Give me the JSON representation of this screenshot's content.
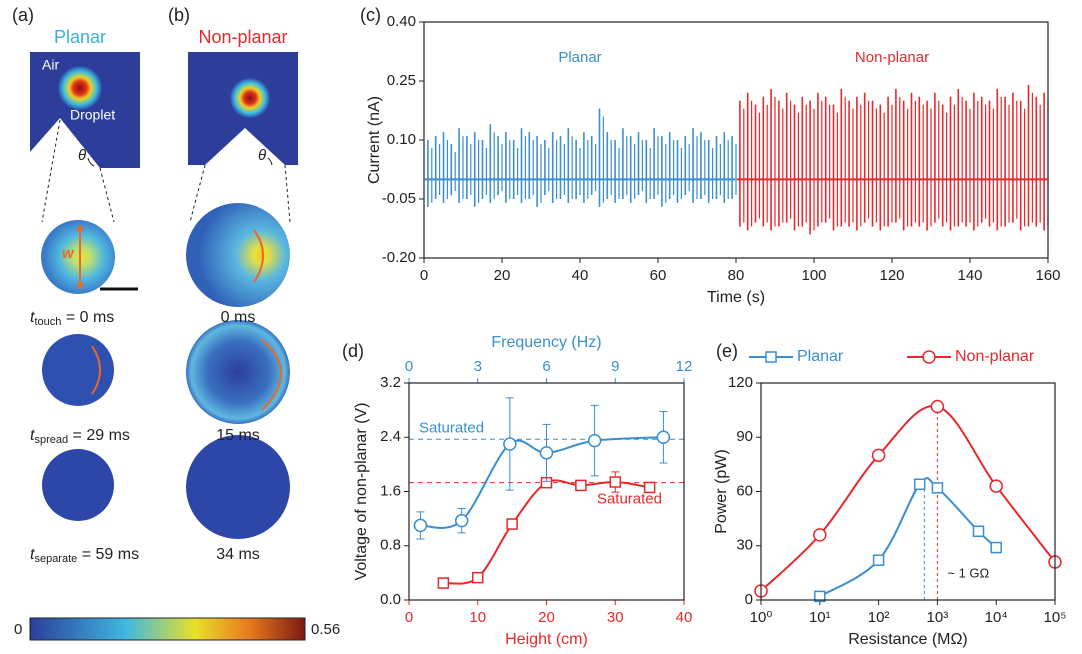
{
  "panel_a": {
    "label": "(a)",
    "title": "Planar",
    "air": "Air",
    "droplet": "Droplet",
    "angle": "θ",
    "width": "w",
    "captions": [
      {
        "t": "t",
        "sub": "touch",
        "rest": " = 0 ms"
      },
      {
        "t": "t",
        "sub": "spread",
        "rest": " = 29 ms"
      },
      {
        "t": "t",
        "sub": "separate",
        "rest": " = 59 ms"
      }
    ]
  },
  "panel_b": {
    "label": "(b)",
    "title": "Non-planar",
    "angle": "θ",
    "captions": [
      "0 ms",
      "15 ms",
      "34 ms"
    ]
  },
  "colorbar": {
    "min": 0,
    "max": 0.56
  },
  "chart_data": [
    {
      "type": "spike",
      "panel_label": "(c)",
      "xlabel": "Time (s)",
      "ylabel": "Current (nA)",
      "xlim": [
        0,
        160
      ],
      "xticks": [
        0,
        20,
        40,
        60,
        80,
        100,
        120,
        140,
        160
      ],
      "ylim": [
        -0.2,
        0.4
      ],
      "yticks": [
        {
          "value": -0.2,
          "label": "-0.20"
        },
        {
          "value": -0.05,
          "label": "-0.05"
        },
        {
          "value": 0.1,
          "label": "0.10"
        },
        {
          "value": 0.25,
          "label": "0.25"
        },
        {
          "value": 0.4,
          "label": "0.40"
        }
      ],
      "baseline": 0,
      "series": [
        {
          "name": "Planar",
          "color": "#3a8fd0",
          "x": [
            1,
            3,
            5,
            7,
            9,
            11,
            13,
            15,
            17,
            19,
            21,
            23,
            25,
            27,
            29,
            31,
            33,
            35,
            37,
            39,
            41,
            43,
            45,
            47,
            49,
            51,
            53,
            55,
            57,
            59,
            61,
            63,
            65,
            67,
            69,
            71,
            73,
            75,
            77,
            79
          ],
          "high": [
            0.1,
            0.11,
            0.12,
            0.09,
            0.13,
            0.11,
            0.12,
            0.1,
            0.14,
            0.11,
            0.12,
            0.1,
            0.13,
            0.12,
            0.11,
            0.1,
            0.12,
            0.11,
            0.13,
            0.1,
            0.12,
            0.11,
            0.18,
            0.12,
            0.1,
            0.13,
            0.11,
            0.12,
            0.1,
            0.13,
            0.11,
            0.12,
            0.1,
            0.11,
            0.13,
            0.12,
            0.1,
            0.11,
            0.12,
            0.11
          ],
          "low": [
            -0.07,
            -0.05,
            -0.06,
            -0.04,
            -0.06,
            -0.05,
            -0.07,
            -0.05,
            -0.06,
            -0.04,
            -0.06,
            -0.05,
            -0.06,
            -0.05,
            -0.07,
            -0.04,
            -0.06,
            -0.05,
            -0.06,
            -0.05,
            -0.06,
            -0.04,
            -0.07,
            -0.05,
            -0.06,
            -0.05,
            -0.06,
            -0.04,
            -0.06,
            -0.05,
            -0.07,
            -0.05,
            -0.06,
            -0.04,
            -0.06,
            -0.05,
            -0.06,
            -0.05,
            -0.06,
            -0.05
          ]
        },
        {
          "name": "Non-planar",
          "color": "#e8282b",
          "x": [
            81,
            83,
            85,
            87,
            89,
            91,
            93,
            95,
            97,
            99,
            101,
            103,
            105,
            107,
            109,
            111,
            113,
            115,
            117,
            119,
            121,
            123,
            125,
            127,
            129,
            131,
            133,
            135,
            137,
            139,
            141,
            143,
            145,
            147,
            149,
            151,
            153,
            155,
            157,
            159
          ],
          "high": [
            0.2,
            0.22,
            0.19,
            0.21,
            0.23,
            0.2,
            0.22,
            0.19,
            0.21,
            0.2,
            0.22,
            0.21,
            0.19,
            0.23,
            0.2,
            0.21,
            0.22,
            0.2,
            0.19,
            0.21,
            0.23,
            0.2,
            0.22,
            0.21,
            0.2,
            0.22,
            0.19,
            0.21,
            0.23,
            0.2,
            0.22,
            0.21,
            0.2,
            0.23,
            0.21,
            0.22,
            0.2,
            0.24,
            0.21,
            0.22
          ],
          "low": [
            -0.12,
            -0.13,
            -0.11,
            -0.12,
            -0.13,
            -0.12,
            -0.11,
            -0.13,
            -0.12,
            -0.14,
            -0.12,
            -0.11,
            -0.13,
            -0.12,
            -0.12,
            -0.13,
            -0.11,
            -0.12,
            -0.13,
            -0.12,
            -0.11,
            -0.13,
            -0.12,
            -0.12,
            -0.13,
            -0.11,
            -0.12,
            -0.13,
            -0.12,
            -0.12,
            -0.13,
            -0.11,
            -0.12,
            -0.13,
            -0.12,
            -0.11,
            -0.13,
            -0.12,
            -0.12,
            -0.13
          ]
        }
      ]
    },
    {
      "type": "line",
      "panel_label": "(d)",
      "xlabel": "Height (cm)",
      "x2label": "Frequency (Hz)",
      "ylabel": "Voltage of non-planar (V)",
      "xaxis_color": "#e8282b",
      "x2axis_color": "#3a8fd0",
      "xlim": [
        0,
        40
      ],
      "xticks": [
        0,
        10,
        20,
        30,
        40
      ],
      "x2lim": [
        0,
        12
      ],
      "x2ticks": [
        0,
        3,
        6,
        9,
        12
      ],
      "ylim": [
        0,
        3.2
      ],
      "yticks": [
        {
          "value": 0,
          "label": "0.0"
        },
        {
          "value": 0.8,
          "label": "0.8"
        },
        {
          "value": 1.6,
          "label": "1.6"
        },
        {
          "value": 2.4,
          "label": "2.4"
        },
        {
          "value": 3.2,
          "label": "3.2"
        }
      ],
      "series": [
        {
          "color": "#e8282b",
          "marker": "square",
          "x": [
            5,
            10,
            15,
            20,
            25,
            30,
            35
          ],
          "values": [
            0.25,
            0.33,
            1.12,
            1.73,
            1.69,
            1.74,
            1.66
          ],
          "errors": [
            0.03,
            0.03,
            0.05,
            0.05,
            0.04,
            0.15,
            0.07
          ]
        },
        {
          "color": "#3a8fd0",
          "marker": "circle",
          "axis": "x2",
          "x": [
            0.5,
            2.3,
            4.4,
            6,
            8.1,
            11.1
          ],
          "values": [
            1.1,
            1.17,
            2.3,
            2.17,
            2.35,
            2.4
          ],
          "errors": [
            0.2,
            0.18,
            0.68,
            0.42,
            0.52,
            0.38
          ]
        }
      ],
      "hlines": [
        {
          "value": 2.37,
          "color": "#3a8fd0",
          "label": "Saturated"
        },
        {
          "value": 1.73,
          "color": "#e8282b",
          "label": "Saturated"
        }
      ]
    },
    {
      "type": "line",
      "panel_label": "(e)",
      "xlabel": "Resistance (MΩ)",
      "ylabel": "Power (pW)",
      "xlog": true,
      "legend": "top",
      "xlim": [
        1,
        100000
      ],
      "xticks": [
        {
          "value": 1,
          "label": "10⁰"
        },
        {
          "value": 10,
          "label": "10¹"
        },
        {
          "value": 100,
          "label": "10²"
        },
        {
          "value": 1000,
          "label": "10³"
        },
        {
          "value": 10000,
          "label": "10⁴"
        },
        {
          "value": 100000,
          "label": "10⁵"
        }
      ],
      "ylim": [
        0,
        120
      ],
      "yticks": [
        0,
        30,
        60,
        90,
        120
      ],
      "series": [
        {
          "name": "Planar",
          "color": "#3a8fd0",
          "marker": "square",
          "x": [
            10,
            100,
            500,
            1000,
            5000,
            10000
          ],
          "values": [
            2,
            22,
            64,
            62,
            38,
            29
          ]
        },
        {
          "name": "Non-planar",
          "color": "#e8282b",
          "marker": "circle",
          "x": [
            1,
            10,
            100,
            1000,
            10000,
            100000
          ],
          "values": [
            5,
            36,
            80,
            107,
            63,
            21
          ]
        }
      ],
      "vlines": [
        {
          "value": 600,
          "color": "#3a8fd0"
        },
        {
          "value": 1000,
          "color": "#e8282b"
        }
      ],
      "annotation": "~ 1 GΩ"
    }
  ]
}
